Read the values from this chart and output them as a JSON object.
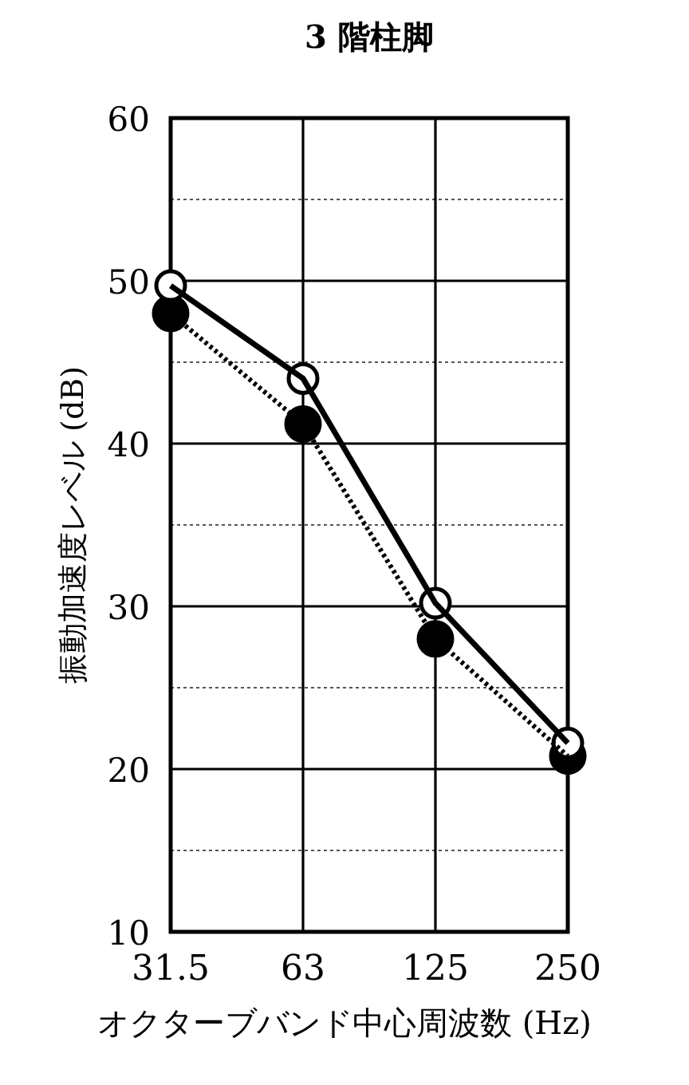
{
  "chart_data": {
    "type": "line",
    "title": "3 階柱脚",
    "xlabel": "オクターブバンド中心周波数 (Hz)",
    "ylabel": "振動加速度レベル (dB)",
    "categories": [
      "31.5",
      "63",
      "125",
      "250"
    ],
    "series": [
      {
        "color": "#000000",
        "values": [
          49.7,
          44.0,
          30.2,
          21.6
        ],
        "line_style": "solid"
      },
      {
        "color": "#000000",
        "values": [
          48.0,
          41.2,
          28.0,
          20.8
        ],
        "line_style": "dotted"
      }
    ],
    "ylim": [
      10,
      60
    ],
    "yticks": [
      10,
      {
        "value": 15,
        "label": null
      },
      20,
      {
        "value": 25,
        "label": null
      },
      30,
      {
        "value": 35,
        "label": null
      },
      40,
      {
        "value": 45,
        "label": null
      },
      50,
      {
        "value": 55,
        "label": null
      },
      60
    ],
    "grid": true,
    "marker": "circle"
  }
}
